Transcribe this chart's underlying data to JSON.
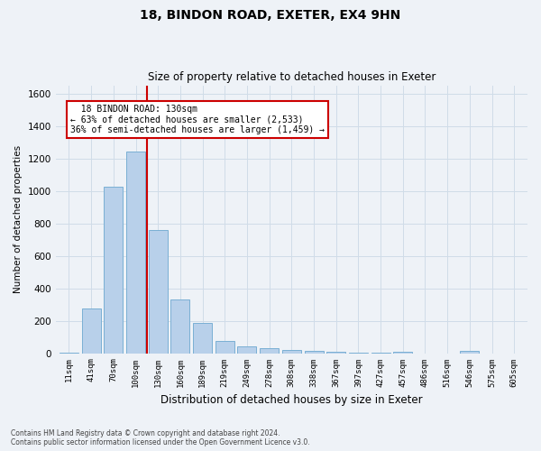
{
  "title1": "18, BINDON ROAD, EXETER, EX4 9HN",
  "title2": "Size of property relative to detached houses in Exeter",
  "xlabel": "Distribution of detached houses by size in Exeter",
  "ylabel": "Number of detached properties",
  "footnote": "Contains HM Land Registry data © Crown copyright and database right 2024.\nContains public sector information licensed under the Open Government Licence v3.0.",
  "bar_color": "#b8d0ea",
  "bar_edge_color": "#7aafd4",
  "grid_color": "#d0dce8",
  "vline_color": "#cc0000",
  "vline_x": 3.5,
  "annotation_text": "  18 BINDON ROAD: 130sqm\n← 63% of detached houses are smaller (2,533)\n36% of semi-detached houses are larger (1,459) →",
  "annotation_box_color": "#ffffff",
  "annotation_box_edge": "#cc0000",
  "categories": [
    "11sqm",
    "41sqm",
    "70sqm",
    "100sqm",
    "130sqm",
    "160sqm",
    "189sqm",
    "219sqm",
    "249sqm",
    "278sqm",
    "308sqm",
    "338sqm",
    "367sqm",
    "397sqm",
    "427sqm",
    "457sqm",
    "486sqm",
    "516sqm",
    "546sqm",
    "575sqm",
    "605sqm"
  ],
  "values": [
    5,
    275,
    1025,
    1240,
    760,
    330,
    185,
    75,
    40,
    30,
    20,
    15,
    10,
    5,
    2,
    8,
    0,
    0,
    15,
    0,
    0
  ],
  "ylim": [
    0,
    1650
  ],
  "yticks": [
    0,
    200,
    400,
    600,
    800,
    1000,
    1200,
    1400,
    1600
  ],
  "figsize": [
    6.0,
    5.0
  ],
  "dpi": 100,
  "bg_color": "#eef2f7"
}
